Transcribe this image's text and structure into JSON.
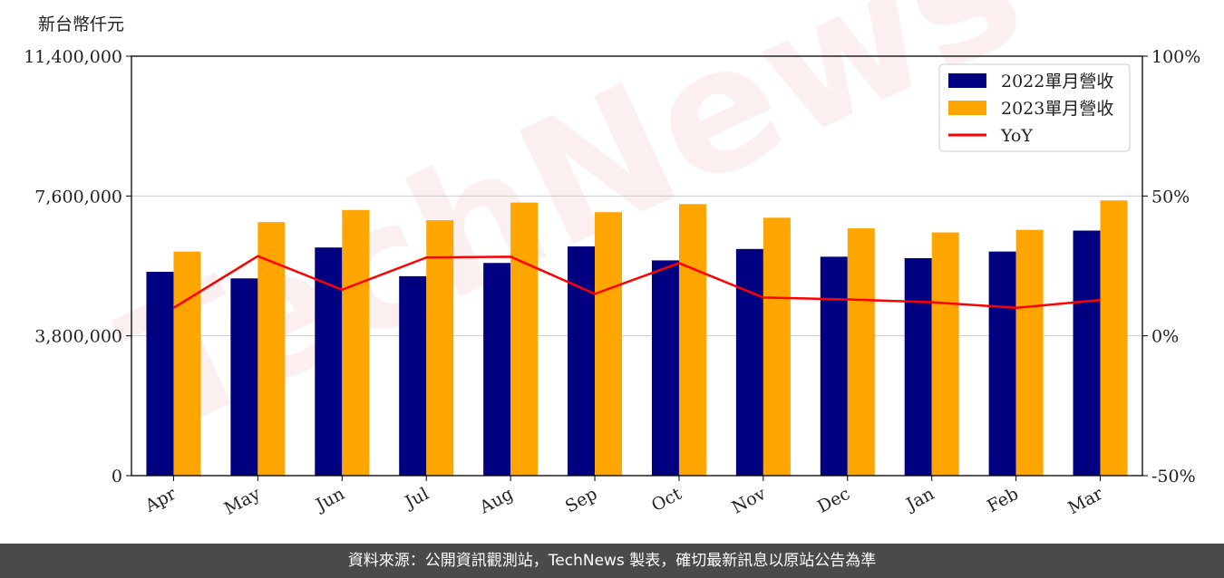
{
  "watermark": "TechNews",
  "footer": "資料來源：公開資訊觀測站，TechNews 製表，確切最新訊息以原站公告為準",
  "colors": {
    "series_2022": "#000080",
    "series_2023": "#ffa500",
    "yoy": "#ff0000"
  },
  "chart_data": {
    "type": "bar",
    "unit_label": "新台幣仟元",
    "categories": [
      "Apr",
      "May",
      "Jun",
      "Jul",
      "Aug",
      "Sep",
      "Oct",
      "Nov",
      "Dec",
      "Jan",
      "Feb",
      "Mar"
    ],
    "series": [
      {
        "name": "2022單月營收",
        "type": "bar",
        "axis": "left",
        "values": [
          5540000,
          5360000,
          6200000,
          5420000,
          5780000,
          6230000,
          5850000,
          6160000,
          5950000,
          5910000,
          6090000,
          6660000
        ]
      },
      {
        "name": "2023單月營收",
        "type": "bar",
        "axis": "left",
        "values": [
          6090000,
          6890000,
          7220000,
          6940000,
          7420000,
          7160000,
          7380000,
          7010000,
          6720000,
          6610000,
          6680000,
          7480000
        ]
      },
      {
        "name": "YoY",
        "type": "line",
        "axis": "right",
        "values": [
          10,
          28.5,
          16.5,
          28,
          28.3,
          15,
          26,
          13.7,
          13,
          12,
          10,
          12.8
        ]
      }
    ],
    "y_left": {
      "min": 0,
      "max": 11400000,
      "ticks": [
        "0",
        "3,800,000",
        "7,600,000",
        "11,400,000"
      ],
      "tick_values": [
        0,
        3800000,
        7600000,
        11400000
      ]
    },
    "y_right": {
      "min": -50,
      "max": 100,
      "ticks": [
        "-50%",
        "0%",
        "50%",
        "100%"
      ],
      "tick_values": [
        -50,
        0,
        50,
        100
      ]
    },
    "grid": "horizontal",
    "legend": "top-right"
  }
}
